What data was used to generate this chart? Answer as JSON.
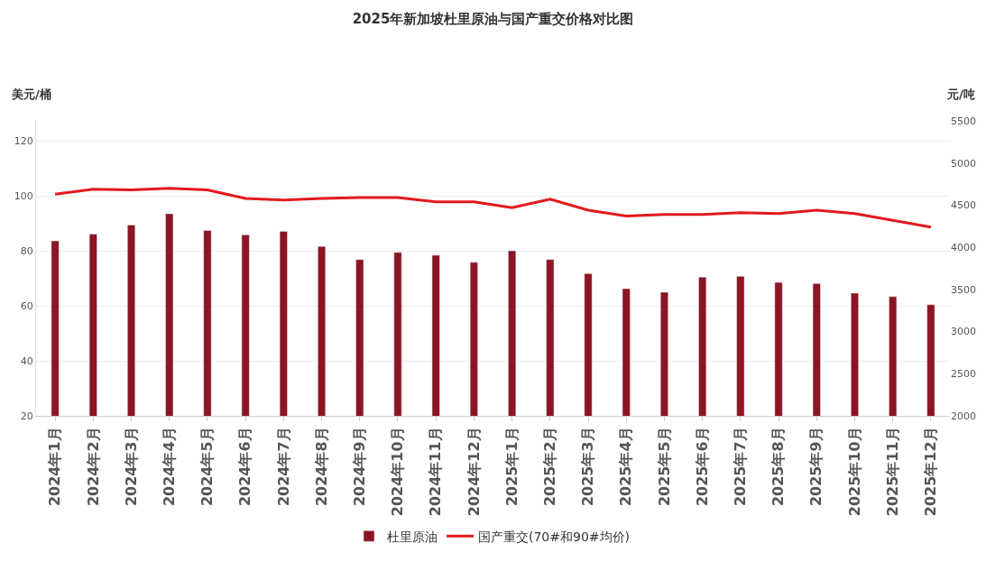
{
  "chart_data": {
    "type": "bar",
    "title": "2025年新加坡杜里原油与国产重交价格对比图",
    "ylabel": "美元/桶",
    "y2label": "元/吨",
    "categories": [
      "2024年1月",
      "2024年2月",
      "2024年3月",
      "2024年4月",
      "2024年5月",
      "2024年6月",
      "2024年7月",
      "2024年8月",
      "2024年9月",
      "2024年10月",
      "2024年11月",
      "2024年12月",
      "2025年1月",
      "2025年2月",
      "2025年3月",
      "2025年4月",
      "2025年5月",
      "2025年6月",
      "2025年7月",
      "2025年8月",
      "2025年9月",
      "2025年10月",
      "2025年11月",
      "2025年12月"
    ],
    "series": [
      {
        "name": "杜里原油",
        "color": "#8b1524",
        "values": [
          83.7,
          86.2,
          89.5,
          93.6,
          87.5,
          85.9,
          87.2,
          81.7,
          76.9,
          79.5,
          78.5,
          75.9,
          80.1,
          76.9,
          71.8,
          66.3,
          65.0,
          70.5,
          70.8,
          68.6,
          68.2,
          64.7,
          63.4,
          60.5
        ]
      },
      {
        "name": "国产重交(70#和90#均价)",
        "type": "line",
        "axis": "y2",
        "color": "#e3191c",
        "marker": "none",
        "line_style": "solid",
        "values": [
          4630,
          4690,
          4680,
          4700,
          4680,
          4580,
          4560,
          4580,
          4590,
          4590,
          4540,
          4540,
          4470,
          4570,
          4440,
          4370,
          4390,
          4390,
          4410,
          4400,
          4440,
          4400,
          4320,
          4240
        ]
      }
    ],
    "ylim": [
      20,
      127.4
    ],
    "yticks": [
      20,
      40,
      60,
      80,
      100,
      120
    ],
    "y2lim": [
      2000,
      5500
    ],
    "y2ticks": [
      2000,
      2500,
      3000,
      3500,
      4000,
      4500,
      5000,
      5500
    ],
    "grid": "y",
    "legend": "bottom"
  }
}
